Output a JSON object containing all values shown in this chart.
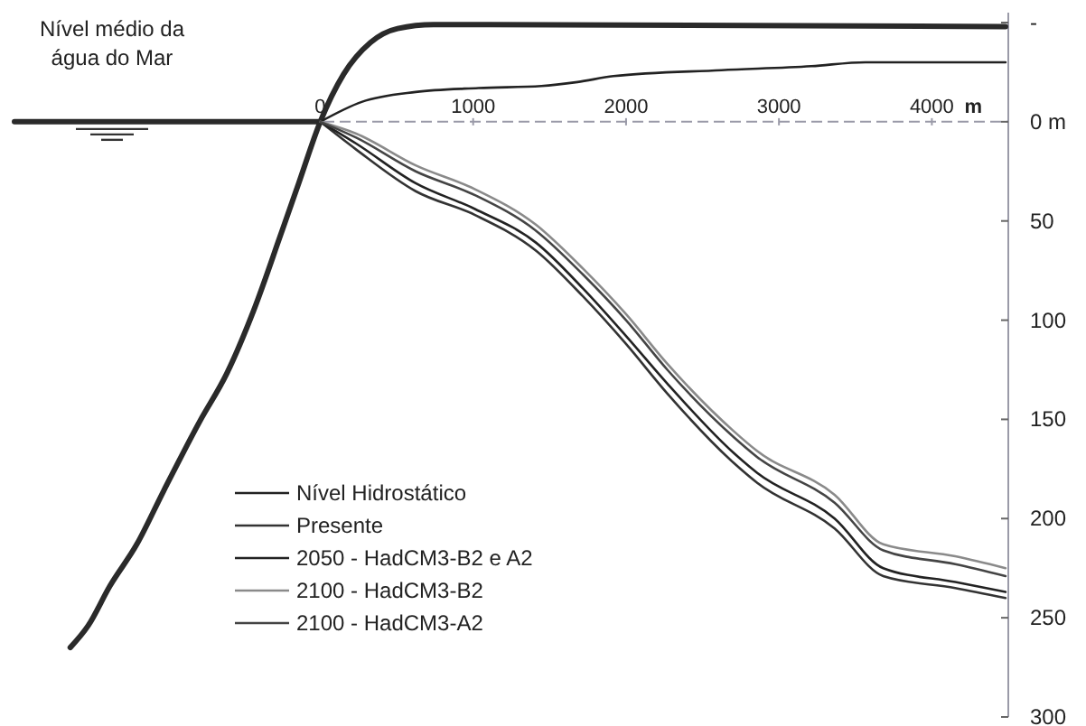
{
  "chart_data": {
    "type": "line",
    "xlabel": "m",
    "annotations": [
      "Nível médio da água do Mar"
    ],
    "xlim": [
      -2000,
      4500
    ],
    "xticks": [
      0,
      1000,
      2000,
      3000,
      4000
    ],
    "ylim": [
      300,
      -55
    ],
    "yticks": [
      {
        "value": -50,
        "label": "-"
      },
      {
        "value": 0,
        "label": "0 m"
      },
      50,
      100,
      150,
      200,
      250,
      300
    ],
    "ref_lines": [
      {
        "axis": "y",
        "value": 0,
        "color": "#9a9aa8",
        "line_style": "dashed"
      }
    ],
    "legend": "bottom left",
    "grid": false,
    "marker": "none",
    "line_style": "solid",
    "series": [
      {
        "color": "#2a2a2a",
        "x": [
          -2000,
          0
        ],
        "values": [
          0,
          0
        ]
      },
      {
        "color": "#2a2a2a",
        "x": [
          -1635,
          -1518,
          -1376,
          -1200,
          -1024,
          -788,
          -612,
          -435,
          -259,
          -141,
          0,
          153,
          329,
          506,
          741,
          1094,
          4482
        ],
        "values": [
          265,
          254,
          234,
          213,
          186,
          151,
          127,
          95,
          57,
          31,
          0,
          -24,
          -40,
          -47,
          -49,
          -49,
          -48
        ]
      },
      {
        "name": "Nível Hidrostático",
        "color": "#222222",
        "x": [
          0,
          271,
          624,
          1035,
          1447,
          1682,
          1918,
          2624,
          3212,
          3565,
          4482
        ],
        "values": [
          0,
          -10,
          -15,
          -17,
          -18,
          -20,
          -23,
          -26,
          -28,
          -30,
          -30
        ]
      },
      {
        "name": "Presente",
        "color": "#333333",
        "x": [
          0,
          235,
          624,
          1012,
          1412,
          1718,
          2000,
          2270,
          2705,
          2858,
          3364,
          3682,
          4153,
          4482
        ],
        "values": [
          0,
          14,
          35,
          47,
          65,
          88,
          112,
          137,
          172,
          182,
          205,
          229,
          235,
          240
        ]
      },
      {
        "name": "2050 - HadCM3-B2 e A2",
        "color": "#222222",
        "x": [
          0,
          235,
          624,
          1012,
          1412,
          1718,
          2000,
          2270,
          2705,
          2858,
          3364,
          3682,
          4153,
          4482
        ],
        "values": [
          0,
          11,
          31,
          44,
          61,
          84,
          108,
          132,
          167,
          177,
          200,
          225,
          232,
          237
        ]
      },
      {
        "name": "2100 - HadCM3-B2",
        "color": "#8a8a8a",
        "x": [
          0,
          235,
          624,
          1012,
          1412,
          1718,
          2000,
          2270,
          2705,
          2858,
          3364,
          3682,
          4153,
          4482
        ],
        "values": [
          0,
          6,
          22,
          34,
          52,
          74,
          97,
          122,
          156,
          166,
          188,
          213,
          219,
          225
        ]
      },
      {
        "name": "2100 - HadCM3-A2",
        "color": "#444444",
        "x": [
          0,
          235,
          624,
          1012,
          1412,
          1718,
          2000,
          2270,
          2705,
          2858,
          3364,
          3682,
          4153,
          4482
        ],
        "values": [
          0,
          8,
          25,
          37,
          55,
          77,
          100,
          125,
          159,
          169,
          192,
          216,
          223,
          229
        ]
      }
    ]
  }
}
